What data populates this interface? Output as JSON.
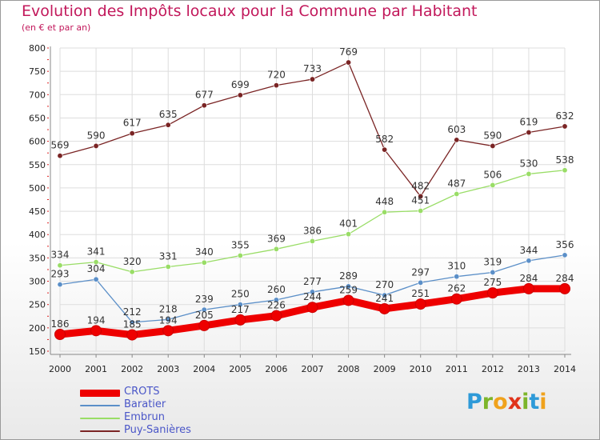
{
  "title": "Evolution des Impôts locaux pour la Commune par Habitant",
  "subtitle": "(en € et par an)",
  "logo": {
    "text": "Proxiti",
    "colors": [
      "#2e9ad8",
      "#7db52a",
      "#f0a21c",
      "#e0331b",
      "#7db52a",
      "#2e9ad8",
      "#f0a21c"
    ]
  },
  "chart_data": {
    "type": "line",
    "categories": [
      "2000",
      "2001",
      "2002",
      "2003",
      "2004",
      "2005",
      "2006",
      "2007",
      "2008",
      "2009",
      "2010",
      "2011",
      "2012",
      "2013",
      "2014"
    ],
    "ylim": [
      150,
      800
    ],
    "yticks": [
      150,
      200,
      250,
      300,
      350,
      400,
      450,
      500,
      550,
      600,
      650,
      700,
      750,
      800
    ],
    "series": [
      {
        "name": "CROTS",
        "color": "#ee0000",
        "values": [
          186,
          194,
          185,
          194,
          205,
          217,
          226,
          244,
          259,
          241,
          251,
          262,
          275,
          284,
          284
        ],
        "labels": [
          "186",
          "194",
          "185",
          "194",
          "205",
          "217",
          "226",
          "244",
          "259",
          "241",
          "251",
          "262",
          "275",
          "284",
          "284"
        ]
      },
      {
        "name": "Baratier",
        "color": "#5b8fc8",
        "values": [
          293,
          304,
          212,
          218,
          239,
          250,
          260,
          277,
          289,
          270,
          297,
          310,
          319,
          344,
          356
        ],
        "labels": [
          "293",
          "304",
          "212",
          "218",
          "239",
          "250",
          "260",
          "277",
          "289",
          "270",
          "297",
          "310",
          "319",
          "344",
          "356"
        ]
      },
      {
        "name": "Embrun",
        "color": "#99dd66",
        "values": [
          334,
          341,
          320,
          331,
          340,
          355,
          369,
          386,
          401,
          448,
          451,
          487,
          506,
          530,
          538
        ],
        "labels": [
          "334",
          "341",
          "320",
          "331",
          "340",
          "355",
          "369",
          "386",
          "401",
          "448",
          "451",
          "487",
          "506",
          "530",
          "538"
        ]
      },
      {
        "name": "Puy-Sanières",
        "color": "#7a2424",
        "values": [
          569,
          590,
          617,
          635,
          677,
          699,
          720,
          733,
          769,
          582,
          482,
          603,
          590,
          619,
          632
        ],
        "labels": [
          "569",
          "590",
          "617",
          "635",
          "677",
          "699",
          "720",
          "733",
          "769",
          "582",
          "482",
          "603",
          "590",
          "619",
          "632"
        ]
      }
    ],
    "legend_position": "bottom-left"
  }
}
